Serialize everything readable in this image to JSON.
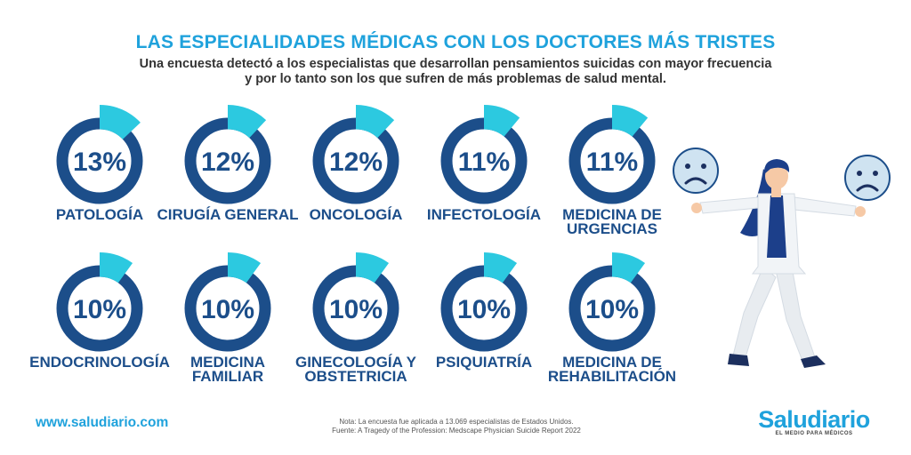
{
  "header": {
    "title": "LAS ESPECIALIDADES MÉDICAS CON LOS DOCTORES MÁS TRISTES",
    "subtitle_line1": "Una encuesta detectó a los especialistas que desarrollan pensamientos suicidas con mayor frecuencia",
    "subtitle_line2": "y por lo tanto son los que sufren de más problemas de salud mental."
  },
  "chart_data": {
    "type": "donut-grid",
    "categories": [
      [
        "PATOLOGÍA"
      ],
      [
        "CIRUGÍA GENERAL"
      ],
      [
        "ONCOLOGÍA"
      ],
      [
        "INFECTOLOGÍA"
      ],
      [
        "MEDICINA DE",
        "URGENCIAS"
      ],
      [
        "ENDOCRINOLOGÍA"
      ],
      [
        "MEDICINA",
        "FAMILIAR"
      ],
      [
        "GINECOLOGÍA Y",
        "OBSTETRICIA"
      ],
      [
        "PSIQUIATRÍA"
      ],
      [
        "MEDICINA DE",
        "REHABILITACIÓN"
      ]
    ],
    "values": [
      13,
      12,
      12,
      11,
      11,
      10,
      10,
      10,
      10,
      10
    ],
    "labels": [
      "13%",
      "12%",
      "12%",
      "11%",
      "11%",
      "10%",
      "10%",
      "10%",
      "10%",
      "10%"
    ],
    "colors": {
      "ring": "#1c4e8a",
      "highlight": "#2cc9e0",
      "text": "#1c4e8a"
    }
  },
  "illustration": {
    "icons": [
      "sad-face-icon",
      "doctor-illustration",
      "sad-face-icon"
    ],
    "colors": {
      "face": "#cfe3f1",
      "face_stroke": "#1c4e8a",
      "hair": "#1c3f8a",
      "coat": "#f1f4f7",
      "skin": "#f6c9a6"
    }
  },
  "footer": {
    "website": "www.saludiario.com",
    "note_line1": "Nota: La encuesta fue aplicada a 13.069 especialistas de Estados Unidos.",
    "note_line2": "Fuente: A Tragedy of the Profession: Medscape Physician Suicide Report 2022",
    "brand": "Saludiario",
    "brand_tagline": "EL MEDIO PARA MÉDICOS"
  }
}
